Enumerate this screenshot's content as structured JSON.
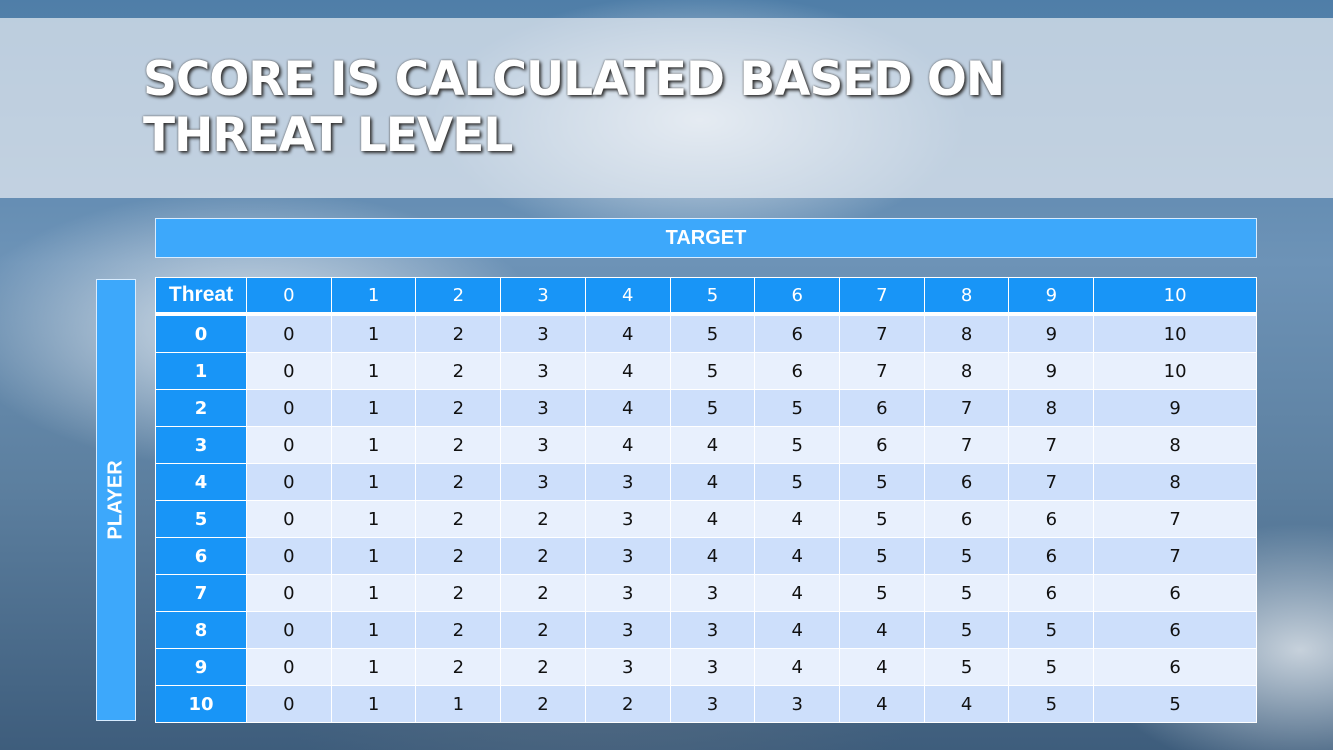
{
  "slide": {
    "title_line1": "SCORE IS CALCULATED BASED ON",
    "title_line2": "THREAT LEVEL",
    "target_label": "TARGET",
    "player_label": "PLAYER"
  },
  "table": {
    "corner_header": "Threat",
    "columns": [
      "0",
      "1",
      "2",
      "3",
      "4",
      "5",
      "6",
      "7",
      "8",
      "9",
      "10"
    ],
    "rows": [
      {
        "threat": "0",
        "values": [
          "0",
          "1",
          "2",
          "3",
          "4",
          "5",
          "6",
          "7",
          "8",
          "9",
          "10"
        ]
      },
      {
        "threat": "1",
        "values": [
          "0",
          "1",
          "2",
          "3",
          "4",
          "5",
          "6",
          "7",
          "8",
          "9",
          "10"
        ]
      },
      {
        "threat": "2",
        "values": [
          "0",
          "1",
          "2",
          "3",
          "4",
          "5",
          "5",
          "6",
          "7",
          "8",
          "9"
        ]
      },
      {
        "threat": "3",
        "values": [
          "0",
          "1",
          "2",
          "3",
          "4",
          "4",
          "5",
          "6",
          "7",
          "7",
          "8"
        ]
      },
      {
        "threat": "4",
        "values": [
          "0",
          "1",
          "2",
          "3",
          "3",
          "4",
          "5",
          "5",
          "6",
          "7",
          "8"
        ]
      },
      {
        "threat": "5",
        "values": [
          "0",
          "1",
          "2",
          "2",
          "3",
          "4",
          "4",
          "5",
          "6",
          "6",
          "7"
        ]
      },
      {
        "threat": "6",
        "values": [
          "0",
          "1",
          "2",
          "2",
          "3",
          "4",
          "4",
          "5",
          "5",
          "6",
          "7"
        ]
      },
      {
        "threat": "7",
        "values": [
          "0",
          "1",
          "2",
          "2",
          "3",
          "3",
          "4",
          "5",
          "5",
          "6",
          "6"
        ]
      },
      {
        "threat": "8",
        "values": [
          "0",
          "1",
          "2",
          "2",
          "3",
          "3",
          "4",
          "4",
          "5",
          "5",
          "6"
        ]
      },
      {
        "threat": "9",
        "values": [
          "0",
          "1",
          "2",
          "2",
          "3",
          "3",
          "4",
          "4",
          "5",
          "5",
          "6"
        ]
      },
      {
        "threat": "10",
        "values": [
          "0",
          "1",
          "1",
          "2",
          "2",
          "3",
          "3",
          "4",
          "4",
          "5",
          "5"
        ]
      }
    ]
  },
  "colors": {
    "header_blue": "#1895f7",
    "label_blue": "#3da8fb",
    "row_dark": "#cddffb",
    "row_light": "#e8f0fd"
  }
}
